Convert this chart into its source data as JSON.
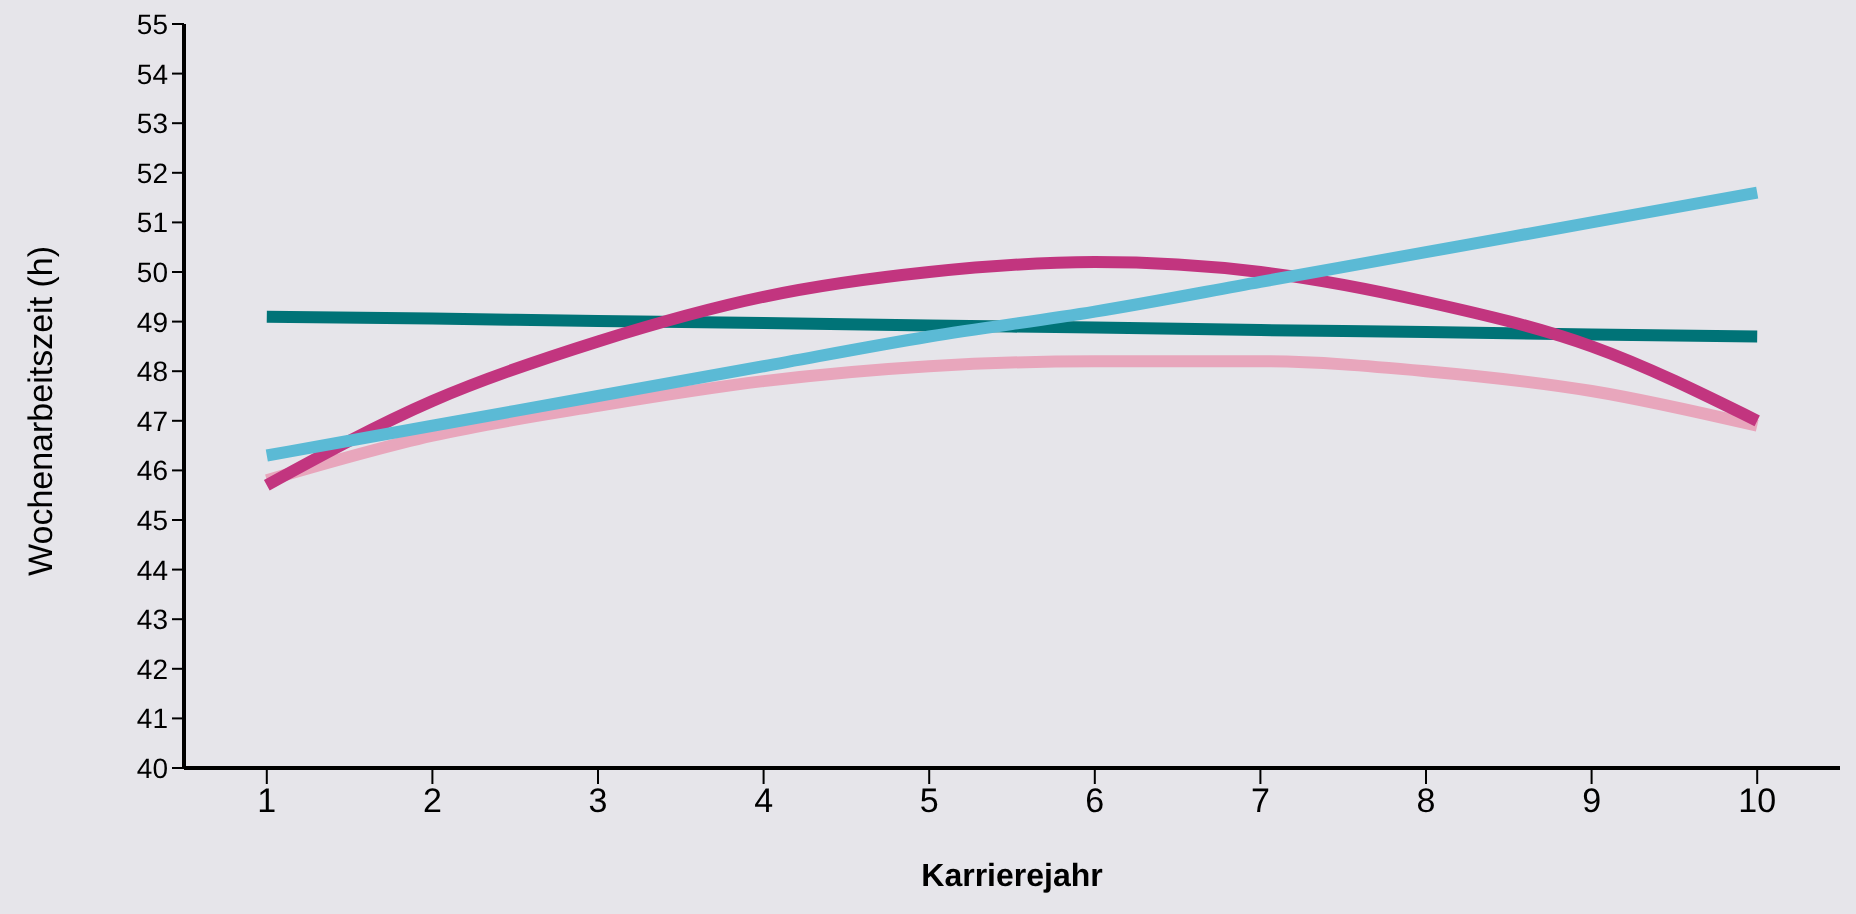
{
  "chart_data": {
    "type": "line",
    "xlabel": "Karrierejahr",
    "ylabel": "Wochenarbeitszeit (h)",
    "x": [
      1,
      2,
      3,
      4,
      5,
      6,
      7,
      8,
      9,
      10
    ],
    "xlim": [
      0.5,
      10.5
    ],
    "xticks": [
      1,
      2,
      3,
      4,
      5,
      6,
      7,
      8,
      9,
      10
    ],
    "ylim": [
      40,
      55
    ],
    "yticks": [
      40,
      41,
      42,
      43,
      44,
      45,
      46,
      47,
      48,
      49,
      50,
      51,
      52,
      53,
      54,
      55
    ],
    "grid": false,
    "legend": false,
    "marker": "none",
    "line_style": "solid",
    "series": [
      {
        "color": "#007377",
        "values": [
          49.1,
          49.06,
          49.01,
          48.97,
          48.92,
          48.88,
          48.83,
          48.79,
          48.74,
          48.7
        ]
      },
      {
        "color": "#e8a6bc",
        "values": [
          45.8,
          46.7,
          47.3,
          47.8,
          48.1,
          48.2,
          48.2,
          48.0,
          47.6,
          46.9
        ]
      },
      {
        "color": "#c2357f",
        "values": [
          45.7,
          47.4,
          48.6,
          49.5,
          50.0,
          50.2,
          50.0,
          49.4,
          48.5,
          47.0
        ]
      },
      {
        "color": "#5bbad5",
        "values": [
          46.3,
          46.9,
          47.5,
          48.1,
          48.7,
          49.2,
          49.8,
          50.4,
          51.0,
          51.6
        ]
      }
    ]
  }
}
